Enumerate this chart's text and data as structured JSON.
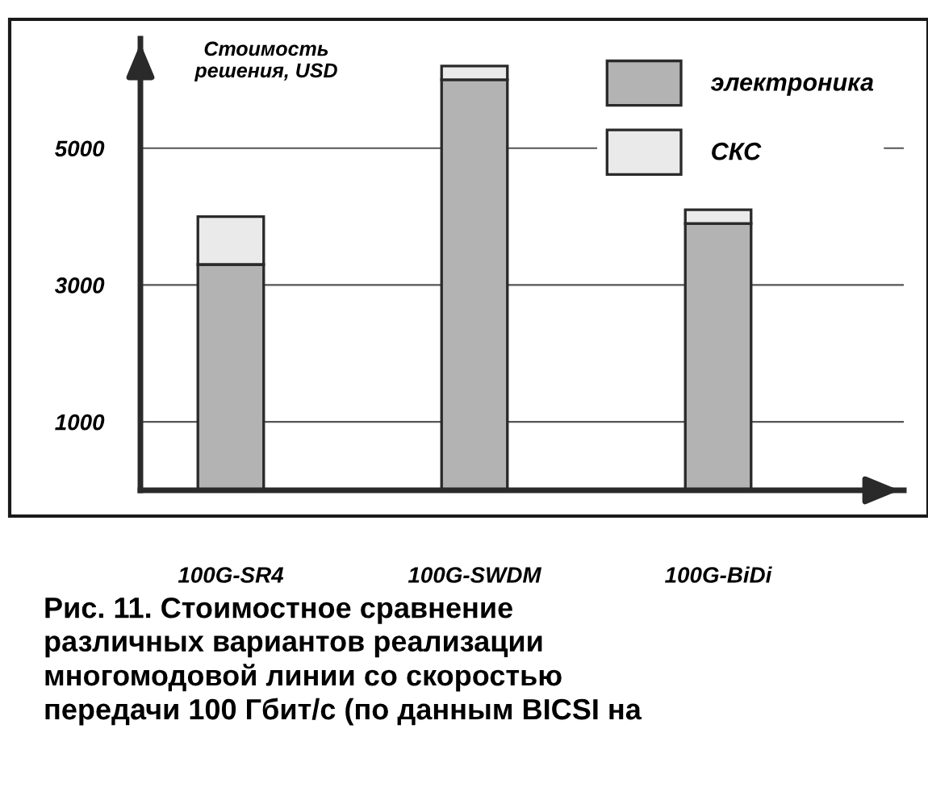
{
  "chart_data": {
    "type": "bar",
    "stacked": true,
    "title": "Рис. 11. Стоимостное сравнение\nразличных вариантов реализации\nмногомодовой линии со скоростью\nпередачи 100 Гбит/с (по данным BICSI на",
    "ylabel": "Стоимость\nрешения, USD",
    "categories": [
      "100G-SR4",
      "100G-SWDM",
      "100G-BiDi"
    ],
    "series": [
      {
        "name": "электроника",
        "color": "#b2b3b2",
        "values": [
          3300,
          6000,
          3900
        ]
      },
      {
        "name": "СКС",
        "color": "#e9eae9",
        "values": [
          700,
          200,
          200
        ]
      }
    ],
    "ylim": [
      0,
      6600
    ],
    "yticks": [
      1000,
      3000,
      5000
    ],
    "grid": "y",
    "legend": "top right"
  }
}
